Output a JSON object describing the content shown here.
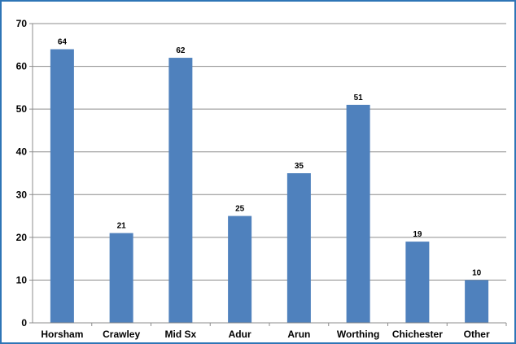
{
  "chart_data": {
    "type": "bar",
    "categories": [
      "Horsham",
      "Crawley",
      "Mid Sx",
      "Adur",
      "Arun",
      "Worthing",
      "Chichester",
      "Other"
    ],
    "values": [
      64,
      21,
      62,
      25,
      35,
      51,
      19,
      10
    ],
    "ylim": [
      0,
      70
    ],
    "yticks": [
      0,
      10,
      20,
      30,
      40,
      50,
      60,
      70
    ],
    "grid": true,
    "data_labels": true,
    "bar_color": "#4f81bd",
    "frame_color": "#2e75b6",
    "grid_color": "#8c8c8c"
  }
}
